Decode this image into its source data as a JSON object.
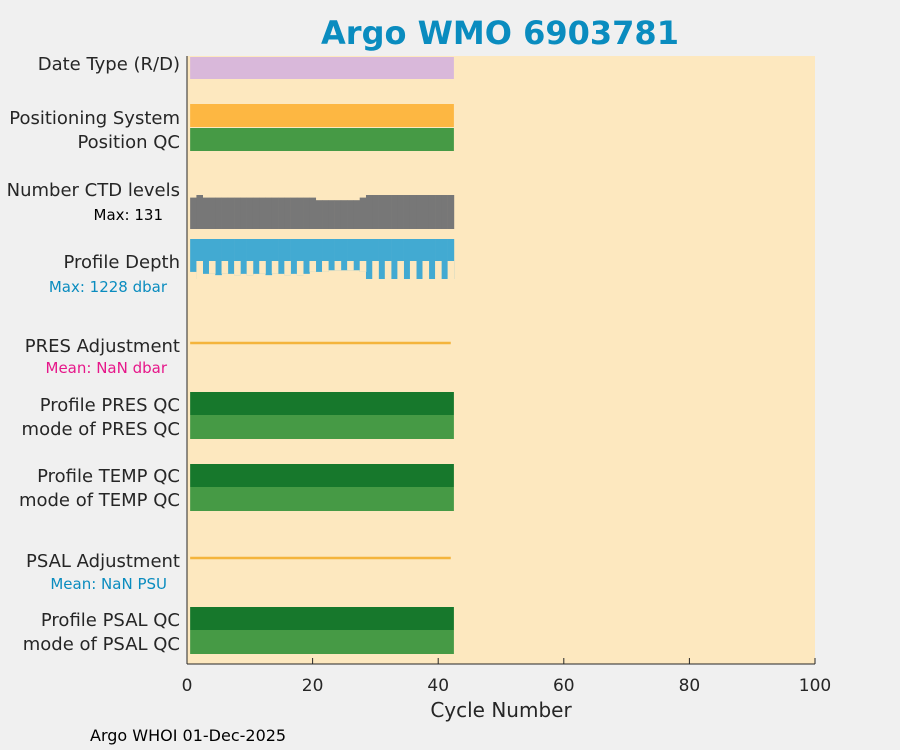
{
  "chart_data": {
    "type": "bar",
    "title": "Argo WMO 6903781",
    "xlabel": "Cycle Number",
    "xlim": [
      0,
      100
    ],
    "xticks": [
      "0",
      "20",
      "40",
      "60",
      "80",
      "100"
    ],
    "cycle_range": [
      1,
      42
    ],
    "footer": "Argo WHOI 01-Dec-2025",
    "rows": {
      "date_type": "Date Type (R/D)",
      "positioning_system": "Positioning System",
      "position_qc": "Position QC",
      "number_ctd_levels": "Number CTD levels",
      "profile_depth": "Profile Depth",
      "pres_adjustment": "PRES Adjustment",
      "profile_pres_qc": "Profile PRES QC",
      "mode_pres_qc": "mode of PRES QC",
      "profile_temp_qc": "Profile TEMP QC",
      "mode_temp_qc": "mode of TEMP QC",
      "psal_adjustment": "PSAL Adjustment",
      "profile_psal_qc": "Profile PSAL QC",
      "mode_psal_qc": "mode of PSAL QC"
    },
    "annotations": {
      "ctd_max": "Max: 131",
      "depth_max": "Max: 1228 dbar",
      "pres_mean": "Mean:  NaN dbar",
      "psal_mean": "Mean:  NaN PSU"
    },
    "ctd_levels_series": [
      121,
      131,
      121,
      121,
      121,
      121,
      121,
      121,
      121,
      121,
      121,
      121,
      121,
      121,
      121,
      121,
      121,
      121,
      121,
      121,
      111,
      111,
      111,
      111,
      111,
      111,
      111,
      121,
      131,
      131,
      131,
      131,
      131,
      131,
      131,
      131,
      131,
      131,
      131,
      131,
      131,
      131
    ],
    "profile_depth_series": [
      1010,
      1228,
      1070,
      1070,
      1110,
      1070,
      1070,
      1110,
      1070,
      1110,
      1070,
      1070,
      1110,
      1070,
      1070,
      1110,
      1070,
      1110,
      1070,
      1010,
      1010,
      1010,
      960,
      960,
      960,
      960,
      960,
      1010,
      1228,
      1228,
      1228,
      1228,
      1228,
      1228,
      1228,
      1228,
      1228,
      1228,
      1228,
      1228,
      1228,
      1228
    ],
    "colors": {
      "background": "#fde8bf",
      "date_type": "#d9b8da",
      "positioning_system": "#fdb742",
      "qc_profile": "#17782c",
      "qc_mode": "#469a45",
      "ctd_levels": "#777777",
      "profile_depth": "#42aad2",
      "adjustment_line": "#f4b43c",
      "title": "#0a8cbf",
      "pres_mean_text": "#e6178a",
      "psal_mean_text": "#0a8cbf"
    }
  }
}
